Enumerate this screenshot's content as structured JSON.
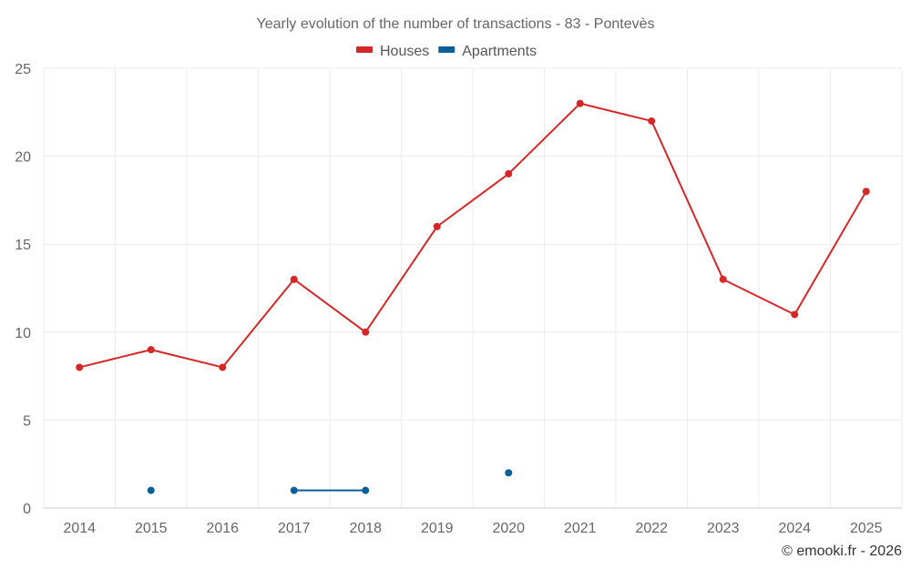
{
  "chart_data": {
    "type": "line",
    "title": "Yearly evolution of the number of transactions - 83 - Pontevès",
    "xlabel": "",
    "ylabel": "",
    "ylim": [
      0,
      25
    ],
    "yticks": [
      0,
      5,
      10,
      15,
      20,
      25
    ],
    "grid": true,
    "legend_position": "top-center",
    "categories": [
      "2014",
      "2015",
      "2016",
      "2017",
      "2018",
      "2019",
      "2020",
      "2021",
      "2022",
      "2023",
      "2024",
      "2025"
    ],
    "series": [
      {
        "name": "Houses",
        "color": "#d62728",
        "values": [
          8,
          9,
          8,
          13,
          10,
          16,
          19,
          23,
          22,
          13,
          11,
          18
        ]
      },
      {
        "name": "Apartments",
        "color": "#0a5f99",
        "values": [
          null,
          1,
          null,
          1,
          1,
          null,
          2,
          null,
          null,
          null,
          null,
          null
        ]
      }
    ],
    "credit": "© emooki.fr - 2026"
  }
}
